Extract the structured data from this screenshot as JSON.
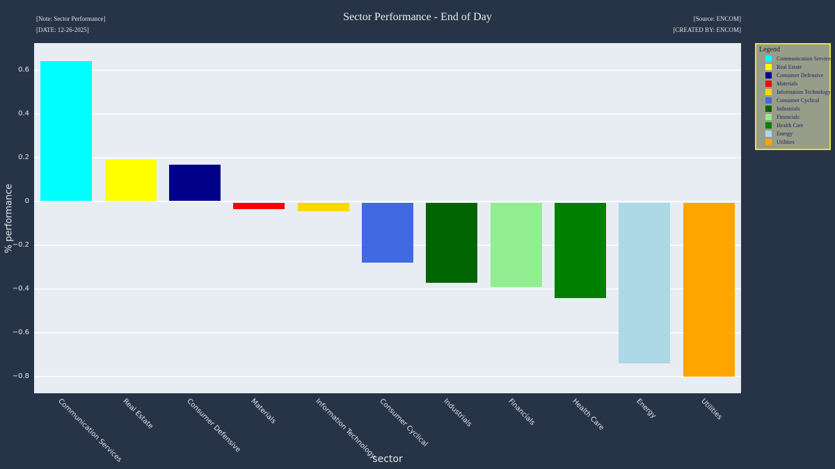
{
  "figure": {
    "title": "Sector Performance - End of Day",
    "annotations": {
      "note": "[Note: Sector Performance]",
      "date": "[DATE: 12-26-2025]",
      "source": "[Source: ENCOM]",
      "created_by": "[CREATED BY: ENCOM]"
    }
  },
  "chart_data": {
    "type": "bar",
    "title": "Sector Performance - End of Day",
    "xlabel": "sector",
    "ylabel": "% performance",
    "ylim": [
      -0.876,
      0.724
    ],
    "grid": true,
    "plot_bg": "#e8edf3",
    "page_bg": "#273447",
    "yticks": [
      {
        "value": 0.6,
        "label": "0.6"
      },
      {
        "value": 0.4,
        "label": "0.4"
      },
      {
        "value": 0.2,
        "label": "0.2"
      },
      {
        "value": 0,
        "label": "0"
      },
      {
        "value": -0.2,
        "label": "−0.2"
      },
      {
        "value": -0.4,
        "label": "−0.4"
      },
      {
        "value": -0.6,
        "label": "−0.6"
      },
      {
        "value": -0.8,
        "label": "−0.8"
      }
    ],
    "categories": [
      "Communication Services",
      "Real Estate",
      "Consumer Defensive",
      "Materials",
      "Information Technology",
      "Consumer Cyclical",
      "Industrials",
      "Financials",
      "Health Care",
      "Energy",
      "Utilities"
    ],
    "values": [
      0.64,
      0.19,
      0.17,
      -0.035,
      -0.045,
      -0.28,
      -0.37,
      -0.39,
      -0.44,
      -0.74,
      -0.8
    ],
    "colors": [
      "#00ffff",
      "#ffff00",
      "#00008b",
      "#ff0000",
      "#ffd700",
      "#4169e1",
      "#006400",
      "#90ee90",
      "#008000",
      "#add8e6",
      "#ffa500"
    ],
    "legend": {
      "title": "Legend",
      "position": "outside-right",
      "bg": "#989d89",
      "border": "#e2e43c"
    }
  }
}
